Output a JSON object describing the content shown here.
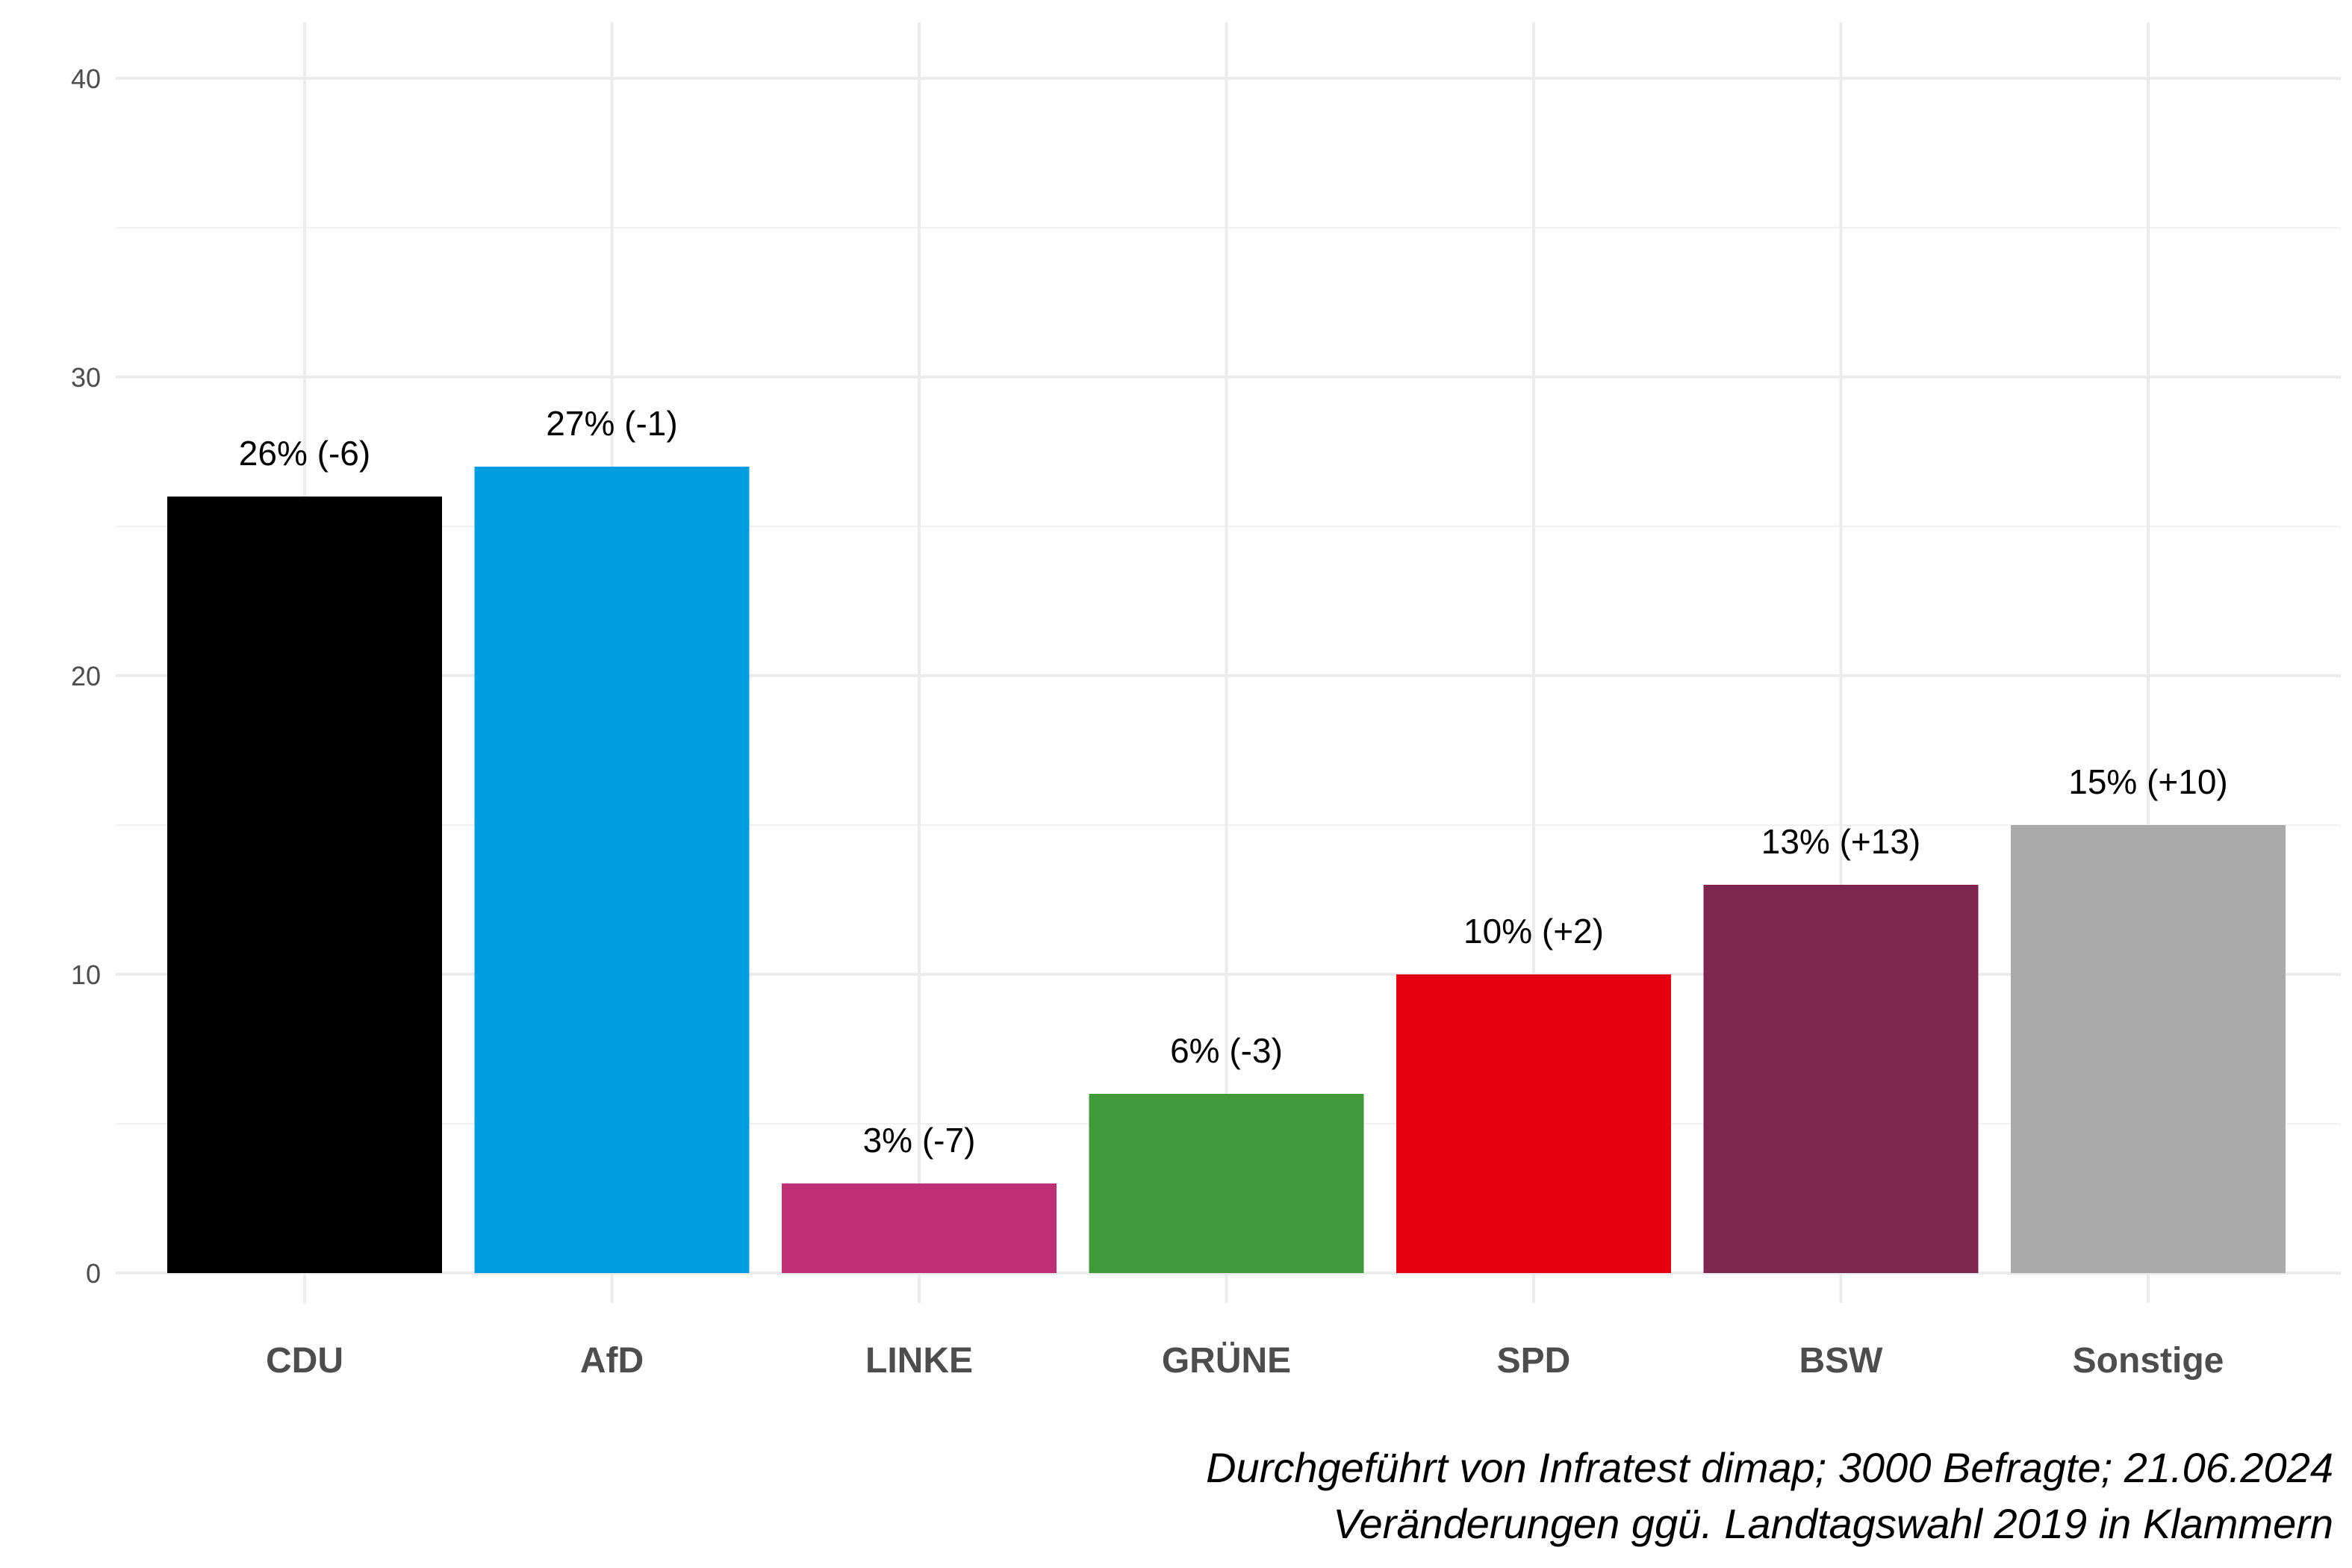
{
  "chart_data": {
    "type": "bar",
    "categories": [
      "CDU",
      "AfD",
      "LINKE",
      "GRÜNE",
      "SPD",
      "BSW",
      "Sonstige"
    ],
    "values": [
      26,
      27,
      3,
      6,
      10,
      13,
      15
    ],
    "labels": [
      "26% (-6)",
      "27% (-1)",
      "3% (-7)",
      "6% (-3)",
      "10% (+2)",
      "13% (+13)",
      "15% (+10)"
    ],
    "colors": [
      "#000000",
      "#009ee0",
      "#be3075",
      "#409a3c",
      "#e3000f",
      "#7d254f",
      "#aaaaaa"
    ],
    "title": "",
    "xlabel": "",
    "ylabel": "",
    "ylim": [
      0,
      40
    ],
    "yticks": [
      0,
      10,
      20,
      30,
      40
    ],
    "grid": true,
    "legend": "none",
    "caption": [
      "Durchgeführt von Infratest dimap; 3000 Befragte; 21.06.2024",
      "Veränderungen ggü. Landtagswahl 2019 in Klammern"
    ]
  }
}
